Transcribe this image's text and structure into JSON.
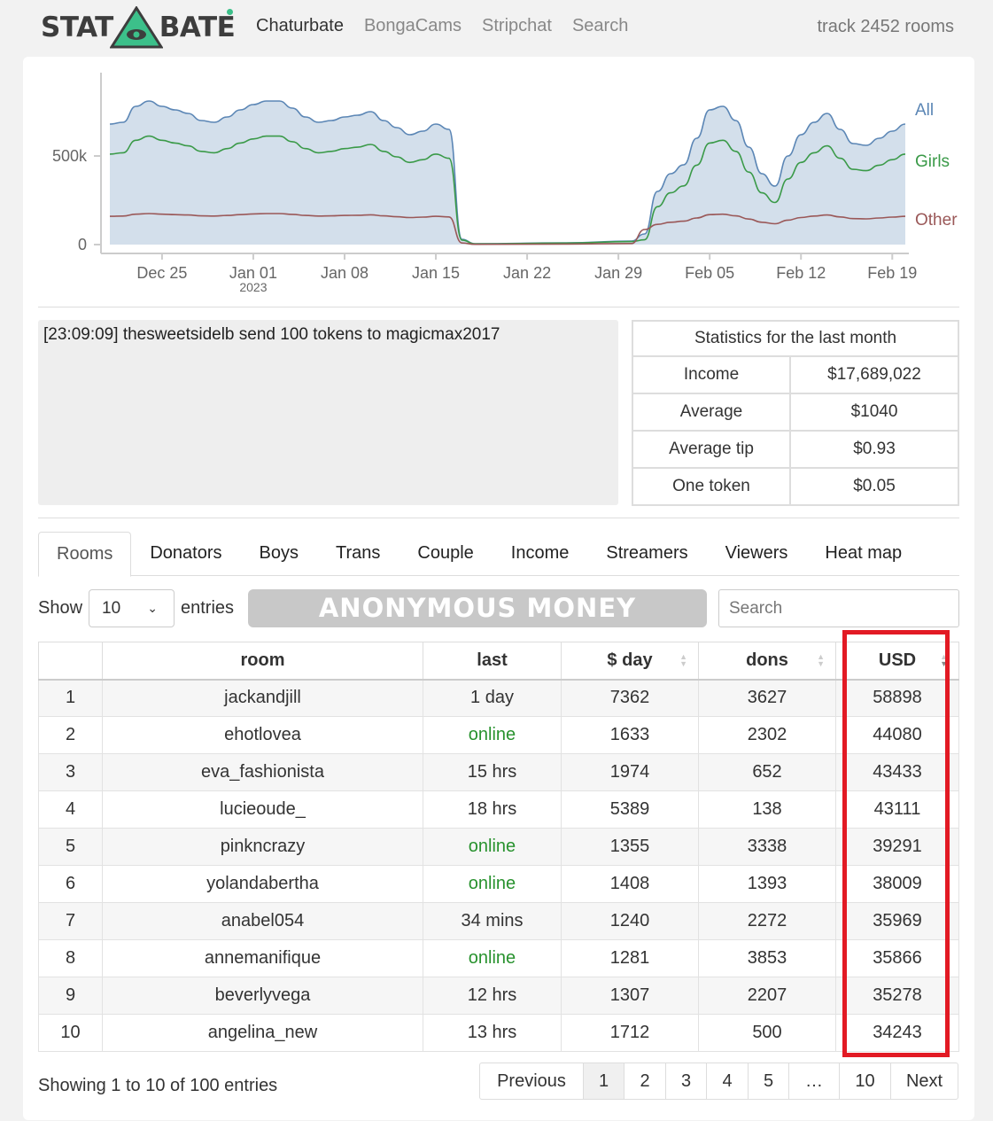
{
  "logo": {
    "left": "STAT",
    "right": "BATE"
  },
  "nav": [
    {
      "label": "Chaturbate",
      "active": true
    },
    {
      "label": "BongaCams",
      "active": false
    },
    {
      "label": "Stripchat",
      "active": false
    },
    {
      "label": "Search",
      "active": false
    }
  ],
  "track_text": "track 2452 rooms",
  "chart_data": {
    "type": "area",
    "x_ticks": [
      "Dec 25",
      "Jan 01",
      "Jan 08",
      "Jan 15",
      "Jan 22",
      "Jan 29",
      "Feb 05",
      "Feb 12",
      "Feb 19"
    ],
    "x_tick_sublabel": {
      "tick": "Jan 01",
      "text": "2023"
    },
    "y_ticks": [
      "0",
      "500k"
    ],
    "ylim": [
      0,
      1000000
    ],
    "x_range_days": [
      -5,
      56
    ],
    "series": [
      {
        "name": "All",
        "color": "#5b86b5",
        "fill": "#d3dfeb",
        "points": [
          [
            -5,
            680000
          ],
          [
            -4,
            690000
          ],
          [
            -3,
            780000
          ],
          [
            -2,
            810000
          ],
          [
            -1,
            780000
          ],
          [
            0,
            760000
          ],
          [
            1,
            740000
          ],
          [
            2,
            700000
          ],
          [
            3,
            690000
          ],
          [
            4,
            720000
          ],
          [
            5,
            760000
          ],
          [
            6,
            790000
          ],
          [
            7,
            810000
          ],
          [
            8,
            810000
          ],
          [
            9,
            770000
          ],
          [
            10,
            720000
          ],
          [
            11,
            690000
          ],
          [
            12,
            700000
          ],
          [
            13,
            720000
          ],
          [
            14,
            730000
          ],
          [
            15,
            750000
          ],
          [
            16,
            700000
          ],
          [
            17,
            660000
          ],
          [
            18,
            620000
          ],
          [
            19,
            640000
          ],
          [
            20,
            680000
          ],
          [
            21,
            650000
          ],
          [
            22,
            30000
          ],
          [
            23,
            5000
          ],
          [
            30,
            10000
          ],
          [
            35,
            20000
          ],
          [
            36,
            60000
          ],
          [
            37,
            300000
          ],
          [
            38,
            400000
          ],
          [
            39,
            450000
          ],
          [
            40,
            600000
          ],
          [
            41,
            760000
          ],
          [
            42,
            780000
          ],
          [
            43,
            700000
          ],
          [
            44,
            550000
          ],
          [
            45,
            400000
          ],
          [
            46,
            330000
          ],
          [
            47,
            500000
          ],
          [
            48,
            620000
          ],
          [
            49,
            690000
          ],
          [
            50,
            740000
          ],
          [
            51,
            650000
          ],
          [
            52,
            570000
          ],
          [
            53,
            560000
          ],
          [
            54,
            600000
          ],
          [
            55,
            640000
          ],
          [
            56,
            680000
          ]
        ],
        "legend": "All"
      },
      {
        "name": "Girls",
        "color": "#3a9a48",
        "legend": "Girls"
      },
      {
        "name": "Other",
        "color": "#9a5858",
        "legend": "Other"
      }
    ]
  },
  "feed": {
    "time": "[23:09:09]",
    "message": "thesweetsidelb send 100 tokens to magicmax2017"
  },
  "stats": {
    "title": "Statistics for the last month",
    "rows": [
      {
        "label": "Income",
        "value": "$17,689,022"
      },
      {
        "label": "Average",
        "value": "$1040"
      },
      {
        "label": "Average tip",
        "value": "$0.93"
      },
      {
        "label": "One token",
        "value": "$0.05"
      }
    ]
  },
  "tabs": [
    "Rooms",
    "Donators",
    "Boys",
    "Trans",
    "Couple",
    "Income",
    "Streamers",
    "Viewers",
    "Heat map"
  ],
  "controls": {
    "show_label": "Show",
    "page_size": "10",
    "entries_label": "entries",
    "banner": "ANONYMOUS MONEY",
    "search_placeholder": "Search"
  },
  "table": {
    "headers": [
      "",
      "room",
      "last",
      "$ day",
      "dons",
      "USD"
    ],
    "rows": [
      [
        "1",
        "jackandjill",
        "1 day",
        "7362",
        "3627",
        "58898"
      ],
      [
        "2",
        "ehotlovea",
        "online",
        "1633",
        "2302",
        "44080"
      ],
      [
        "3",
        "eva_fashionista",
        "15 hrs",
        "1974",
        "652",
        "43433"
      ],
      [
        "4",
        "lucieoude_",
        "18 hrs",
        "5389",
        "138",
        "43111"
      ],
      [
        "5",
        "pinkncrazy",
        "online",
        "1355",
        "3338",
        "39291"
      ],
      [
        "6",
        "yolandabertha",
        "online",
        "1408",
        "1393",
        "38009"
      ],
      [
        "7",
        "anabel054",
        "34 mins",
        "1240",
        "2272",
        "35969"
      ],
      [
        "8",
        "annemanifique",
        "online",
        "1281",
        "3853",
        "35866"
      ],
      [
        "9",
        "beverlyvega",
        "12 hrs",
        "1307",
        "2207",
        "35278"
      ],
      [
        "10",
        "angelina_new",
        "13 hrs",
        "1712",
        "500",
        "34243"
      ]
    ]
  },
  "info": "Showing 1 to 10 of 100 entries",
  "pager": [
    "Previous",
    "1",
    "2",
    "3",
    "4",
    "5",
    "…",
    "10",
    "Next"
  ],
  "colors": {
    "online": "#28922e",
    "highlight": "#e21a24",
    "logo_accent": "#3cc08a"
  }
}
